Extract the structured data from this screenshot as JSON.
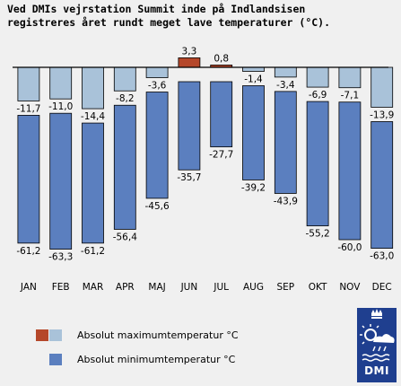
{
  "title_lines": [
    "Ved DMIs vejrstation Summit inde på Indlandsisen",
    "registreres året rundt meget lave temperaturer (°C)."
  ],
  "chart_data": {
    "type": "bar",
    "title": "Ved DMIs vejrstation Summit inde på Indlandsisen registreres året rundt meget lave temperaturer (°C).",
    "categories": [
      "JAN",
      "FEB",
      "MAR",
      "APR",
      "MAJ",
      "JUN",
      "JUL",
      "AUG",
      "SEP",
      "OKT",
      "NOV",
      "DEC"
    ],
    "series": [
      {
        "name": "Absolut maximumtemperatur °C",
        "values": [
          -11.7,
          -11.0,
          -14.4,
          -8.2,
          -3.6,
          3.3,
          0.8,
          -1.4,
          -3.4,
          -6.9,
          -7.1,
          -13.9
        ],
        "labels": [
          "-11,7",
          "-11,0",
          "-14,4",
          "-8,2",
          "-3,6",
          "3,3",
          "0,8",
          "-1,4",
          "-3,4",
          "-6,9",
          "-7,1",
          "-13,9"
        ]
      },
      {
        "name": "Absolut minimumtemperatur °C",
        "values": [
          -61.2,
          -63.3,
          -61.2,
          -56.4,
          -45.6,
          -35.7,
          -27.7,
          -39.2,
          -43.9,
          -55.2,
          -60.0,
          -63.0
        ],
        "labels": [
          "-61,2",
          "-63,3",
          "-61,2",
          "-56,4",
          "-45,6",
          "-35,7",
          "-27,7",
          "-39,2",
          "-43,9",
          "-55,2",
          "-60,0",
          "-63,0"
        ]
      }
    ],
    "colors": {
      "max_positive": "#b5472a",
      "max_negative": "#a9c2d9",
      "min": "#5b7fbf",
      "outline": "#000000",
      "zero_line": "#000000"
    },
    "ylim": [
      -70,
      10
    ],
    "grid": false,
    "legend_position": "bottom-left"
  },
  "legend": {
    "items": [
      {
        "label": "Absolut maximumtemperatur °C",
        "colors": [
          "#b5472a",
          "#a9c2d9"
        ]
      },
      {
        "label": "Absolut minimumtemperatur °C",
        "colors": [
          "#5b7fbf"
        ]
      }
    ]
  },
  "logo": {
    "text": "DMI"
  }
}
